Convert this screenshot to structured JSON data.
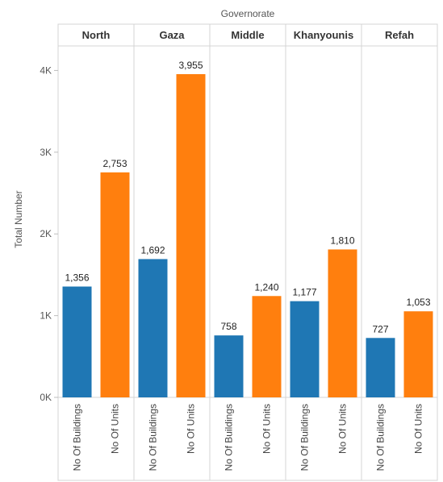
{
  "chart_data": {
    "type": "bar",
    "column_header": "Governorate",
    "ylabel": "Total Number",
    "ylim": [
      0,
      4300
    ],
    "yticks": [
      {
        "value": 0,
        "label": "0K"
      },
      {
        "value": 1000,
        "label": "1K"
      },
      {
        "value": 2000,
        "label": "2K"
      },
      {
        "value": 3000,
        "label": "3K"
      },
      {
        "value": 4000,
        "label": "4K"
      }
    ],
    "grid": false,
    "panels": [
      {
        "name": "North",
        "bars": [
          {
            "category": "No Of Buildings",
            "value": 1356,
            "label": "1,356"
          },
          {
            "category": "No Of Units",
            "value": 2753,
            "label": "2,753"
          }
        ]
      },
      {
        "name": "Gaza",
        "bars": [
          {
            "category": "No Of Buildings",
            "value": 1692,
            "label": "1,692"
          },
          {
            "category": "No Of Units",
            "value": 3955,
            "label": "3,955"
          }
        ]
      },
      {
        "name": "Middle",
        "bars": [
          {
            "category": "No Of Buildings",
            "value": 758,
            "label": "758"
          },
          {
            "category": "No Of Units",
            "value": 1240,
            "label": "1,240"
          }
        ]
      },
      {
        "name": "Khanyounis",
        "bars": [
          {
            "category": "No Of Buildings",
            "value": 1177,
            "label": "1,177"
          },
          {
            "category": "No Of Units",
            "value": 1810,
            "label": "1,810"
          }
        ]
      },
      {
        "name": "Refah",
        "bars": [
          {
            "category": "No Of Buildings",
            "value": 727,
            "label": "727"
          },
          {
            "category": "No Of Units",
            "value": 1053,
            "label": "1,053"
          }
        ]
      }
    ],
    "colors": {
      "No Of Buildings": "#1f77b4",
      "No Of Units": "#ff7f0e"
    }
  }
}
